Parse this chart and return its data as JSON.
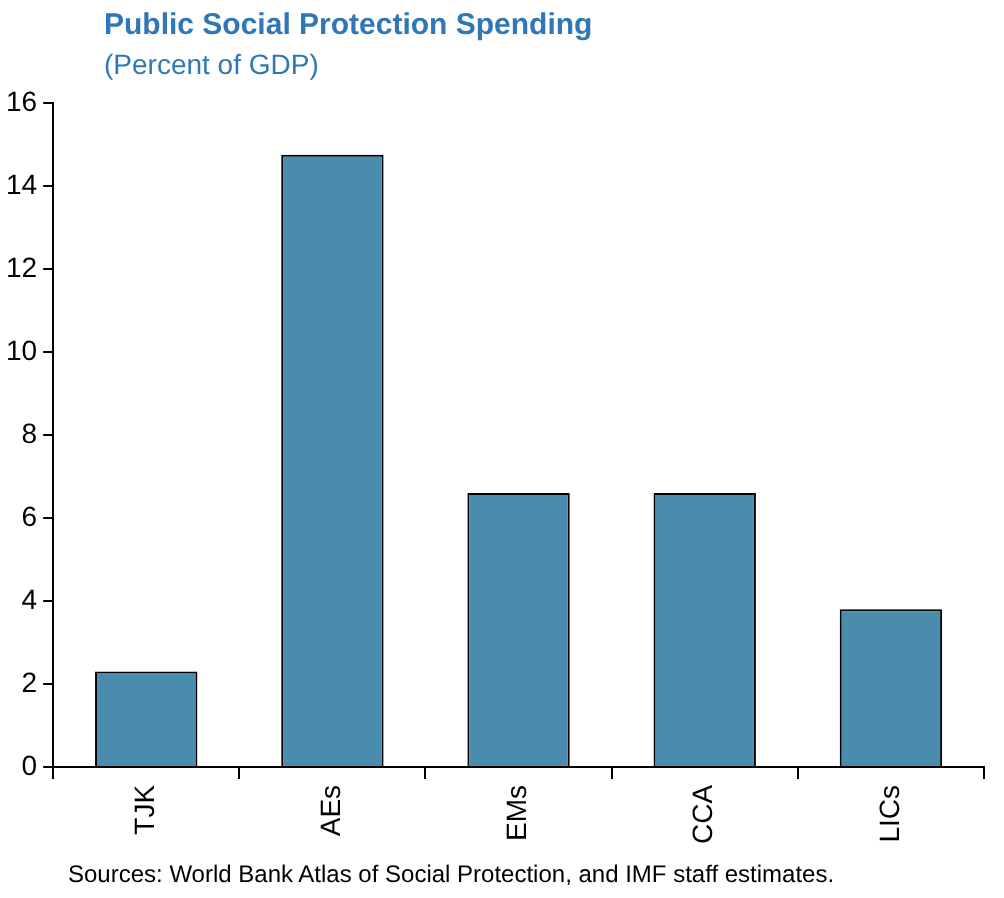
{
  "chart_data": {
    "type": "bar",
    "title": "Public Social Protection Spending",
    "subtitle": "(Percent of GDP)",
    "categories": [
      "TJK",
      "AEs",
      "EMs",
      "CCA",
      "LICs"
    ],
    "values": [
      2.3,
      14.75,
      6.6,
      6.6,
      3.8
    ],
    "color": "#4a8cae",
    "ylim": [
      0,
      16
    ],
    "yticks": [
      0,
      2,
      4,
      6,
      8,
      10,
      12,
      14,
      16
    ],
    "grid": false,
    "legend": false,
    "annotations": [
      "Sources: World Bank Atlas of Social Protection, and IMF staff estimates."
    ]
  }
}
